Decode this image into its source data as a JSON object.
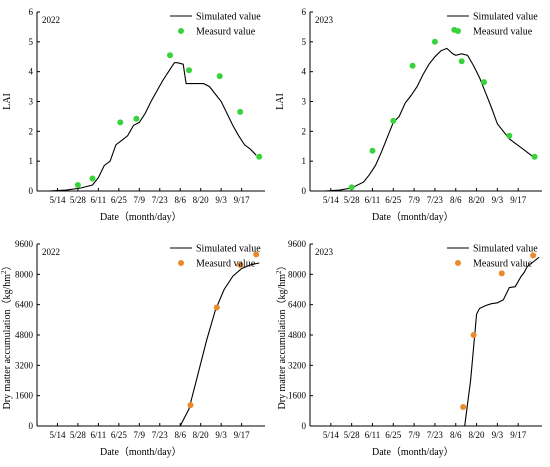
{
  "chart_data": [
    {
      "type": "line",
      "year": "2022",
      "ylabel": "LAI",
      "xlabel": "Date（month/day）",
      "ylim": [
        0,
        6
      ],
      "yticks": [
        0,
        1,
        2,
        3,
        4,
        5,
        6
      ],
      "xlim": [
        120,
        276
      ],
      "xticks": [
        {
          "doy": 134,
          "label": "5/14"
        },
        {
          "doy": 148,
          "label": "5/28"
        },
        {
          "doy": 162,
          "label": "6/11"
        },
        {
          "doy": 176,
          "label": "6/25"
        },
        {
          "doy": 190,
          "label": "7/9"
        },
        {
          "doy": 204,
          "label": "7/23"
        },
        {
          "doy": 218,
          "label": "8/6"
        },
        {
          "doy": 232,
          "label": "8/20"
        },
        {
          "doy": 246,
          "label": "9/3"
        },
        {
          "doy": 260,
          "label": "9/17"
        }
      ],
      "legend": {
        "position": "top-right",
        "simulated_label": "Simulated value",
        "measured_label": "Measurd value"
      },
      "series": [
        {
          "name": "Simulated value",
          "style": "line",
          "color": "#000000",
          "x": [
            128,
            140,
            150,
            158,
            162,
            166,
            170,
            174,
            178,
            182,
            186,
            190,
            194,
            198,
            202,
            206,
            210,
            214,
            216,
            220,
            222,
            226,
            234,
            238,
            242,
            246,
            250,
            254,
            258,
            262,
            266,
            270
          ],
          "y": [
            0,
            0.03,
            0.1,
            0.2,
            0.45,
            0.85,
            1.0,
            1.55,
            1.7,
            1.85,
            2.2,
            2.3,
            2.6,
            3.0,
            3.35,
            3.7,
            4.0,
            4.3,
            4.3,
            4.25,
            3.6,
            3.6,
            3.6,
            3.5,
            3.25,
            3.0,
            2.6,
            2.2,
            1.85,
            1.55,
            1.4,
            1.2
          ]
        },
        {
          "name": "Measurd value",
          "style": "points",
          "color": "#39d23b",
          "x": [
            148,
            158,
            177,
            188,
            211,
            224,
            245,
            259,
            272
          ],
          "y": [
            0.2,
            0.42,
            2.3,
            2.42,
            4.55,
            4.05,
            3.85,
            2.65,
            1.15
          ]
        }
      ]
    },
    {
      "type": "line",
      "year": "2023",
      "ylabel": "LAI",
      "xlabel": "Date（month/day）",
      "ylim": [
        0,
        6
      ],
      "yticks": [
        0,
        1,
        2,
        3,
        4,
        5,
        6
      ],
      "xlim": [
        120,
        276
      ],
      "xticks": [
        {
          "doy": 134,
          "label": "5/14"
        },
        {
          "doy": 148,
          "label": "5/28"
        },
        {
          "doy": 162,
          "label": "6/11"
        },
        {
          "doy": 176,
          "label": "6/25"
        },
        {
          "doy": 190,
          "label": "7/9"
        },
        {
          "doy": 204,
          "label": "7/23"
        },
        {
          "doy": 218,
          "label": "8/6"
        },
        {
          "doy": 232,
          "label": "8/20"
        },
        {
          "doy": 246,
          "label": "9/3"
        },
        {
          "doy": 260,
          "label": "9/17"
        }
      ],
      "legend": {
        "position": "top-right",
        "simulated_label": "Simulated value",
        "measured_label": "Measurd value"
      },
      "series": [
        {
          "name": "Simulated value",
          "style": "line",
          "color": "#000000",
          "x": [
            130,
            140,
            148,
            156,
            160,
            164,
            168,
            172,
            176,
            180,
            184,
            188,
            192,
            196,
            200,
            204,
            208,
            212,
            216,
            218,
            222,
            226,
            230,
            234,
            238,
            242,
            246,
            250,
            254,
            258,
            262,
            266,
            270
          ],
          "y": [
            0,
            0.03,
            0.1,
            0.3,
            0.55,
            0.85,
            1.3,
            1.8,
            2.3,
            2.5,
            2.95,
            3.2,
            3.5,
            3.9,
            4.25,
            4.5,
            4.7,
            4.78,
            4.6,
            4.55,
            4.6,
            4.55,
            4.2,
            3.8,
            3.3,
            2.8,
            2.25,
            2.0,
            1.75,
            1.6,
            1.45,
            1.3,
            1.15
          ]
        },
        {
          "name": "Measurd value",
          "style": "points",
          "color": "#39d23b",
          "x": [
            148,
            162,
            176,
            189,
            204,
            217,
            222,
            237,
            254,
            271
          ],
          "y": [
            0.12,
            1.35,
            2.35,
            4.2,
            5.0,
            5.4,
            4.35,
            3.65,
            1.85,
            1.15
          ]
        }
      ]
    },
    {
      "type": "line",
      "year": "2022",
      "ylabel": "Dry matter accumulation（kg/hm²）",
      "ylabel_main": "Dry matter accumulation（kg/hm",
      "ylabel_sup": "2",
      "ylabel_end": "）",
      "xlabel": "Date（month/day）",
      "ylim": [
        0,
        9600
      ],
      "yticks": [
        0,
        1600,
        3200,
        4800,
        6400,
        8000,
        9600
      ],
      "xlim": [
        120,
        276
      ],
      "xticks": [
        {
          "doy": 134,
          "label": "5/14"
        },
        {
          "doy": 148,
          "label": "5/28"
        },
        {
          "doy": 162,
          "label": "6/11"
        },
        {
          "doy": 176,
          "label": "6/25"
        },
        {
          "doy": 190,
          "label": "7/9"
        },
        {
          "doy": 204,
          "label": "7/23"
        },
        {
          "doy": 218,
          "label": "8/6"
        },
        {
          "doy": 232,
          "label": "8/20"
        },
        {
          "doy": 246,
          "label": "9/3"
        },
        {
          "doy": 260,
          "label": "9/17"
        }
      ],
      "legend": {
        "position": "top-right",
        "simulated_label": "Simulated value",
        "measured_label": "Measurd value"
      },
      "series": [
        {
          "name": "Simulated value",
          "style": "line",
          "color": "#000000",
          "x": [
            218,
            224,
            230,
            236,
            242,
            248,
            254,
            260,
            266,
            272
          ],
          "y": [
            0,
            900,
            2700,
            4500,
            6100,
            7200,
            7900,
            8300,
            8500,
            8600
          ]
        },
        {
          "name": "Measurd value",
          "style": "points",
          "color": "#e98a2c",
          "x": [
            225,
            243,
            259,
            270
          ],
          "y": [
            1100,
            6250,
            8500,
            9050
          ]
        }
      ]
    },
    {
      "type": "line",
      "year": "2023",
      "ylabel": "Dry matter accumulation（kg/hm²）",
      "ylabel_main": "Dry matter accumulation（kg/hm",
      "ylabel_sup": "2",
      "ylabel_end": "）",
      "xlabel": "Date（month/day）",
      "ylim": [
        0,
        9600
      ],
      "yticks": [
        0,
        1600,
        3200,
        4800,
        6400,
        8000,
        9600
      ],
      "xlim": [
        120,
        276
      ],
      "xticks": [
        {
          "doy": 134,
          "label": "5/14"
        },
        {
          "doy": 148,
          "label": "5/28"
        },
        {
          "doy": 162,
          "label": "6/11"
        },
        {
          "doy": 176,
          "label": "6/25"
        },
        {
          "doy": 190,
          "label": "7/9"
        },
        {
          "doy": 204,
          "label": "7/23"
        },
        {
          "doy": 218,
          "label": "8/6"
        },
        {
          "doy": 232,
          "label": "8/20"
        },
        {
          "doy": 246,
          "label": "9/3"
        },
        {
          "doy": 260,
          "label": "9/17"
        }
      ],
      "legend": {
        "position": "top-right",
        "simulated_label": "Simulated value",
        "measured_label": "Measurd value"
      },
      "series": [
        {
          "name": "Simulated value",
          "style": "line",
          "color": "#000000",
          "x": [
            224,
            228,
            232,
            234,
            238,
            242,
            246,
            250,
            254,
            258,
            262,
            264,
            266,
            270,
            274
          ],
          "y": [
            0,
            2400,
            5900,
            6200,
            6350,
            6450,
            6500,
            6650,
            7300,
            7350,
            7900,
            8100,
            8400,
            8650,
            8900
          ]
        },
        {
          "name": "Measurd value",
          "style": "points",
          "color": "#e98a2c",
          "x": [
            223,
            230,
            249,
            270
          ],
          "y": [
            1000,
            4800,
            8050,
            9000
          ]
        }
      ]
    }
  ]
}
